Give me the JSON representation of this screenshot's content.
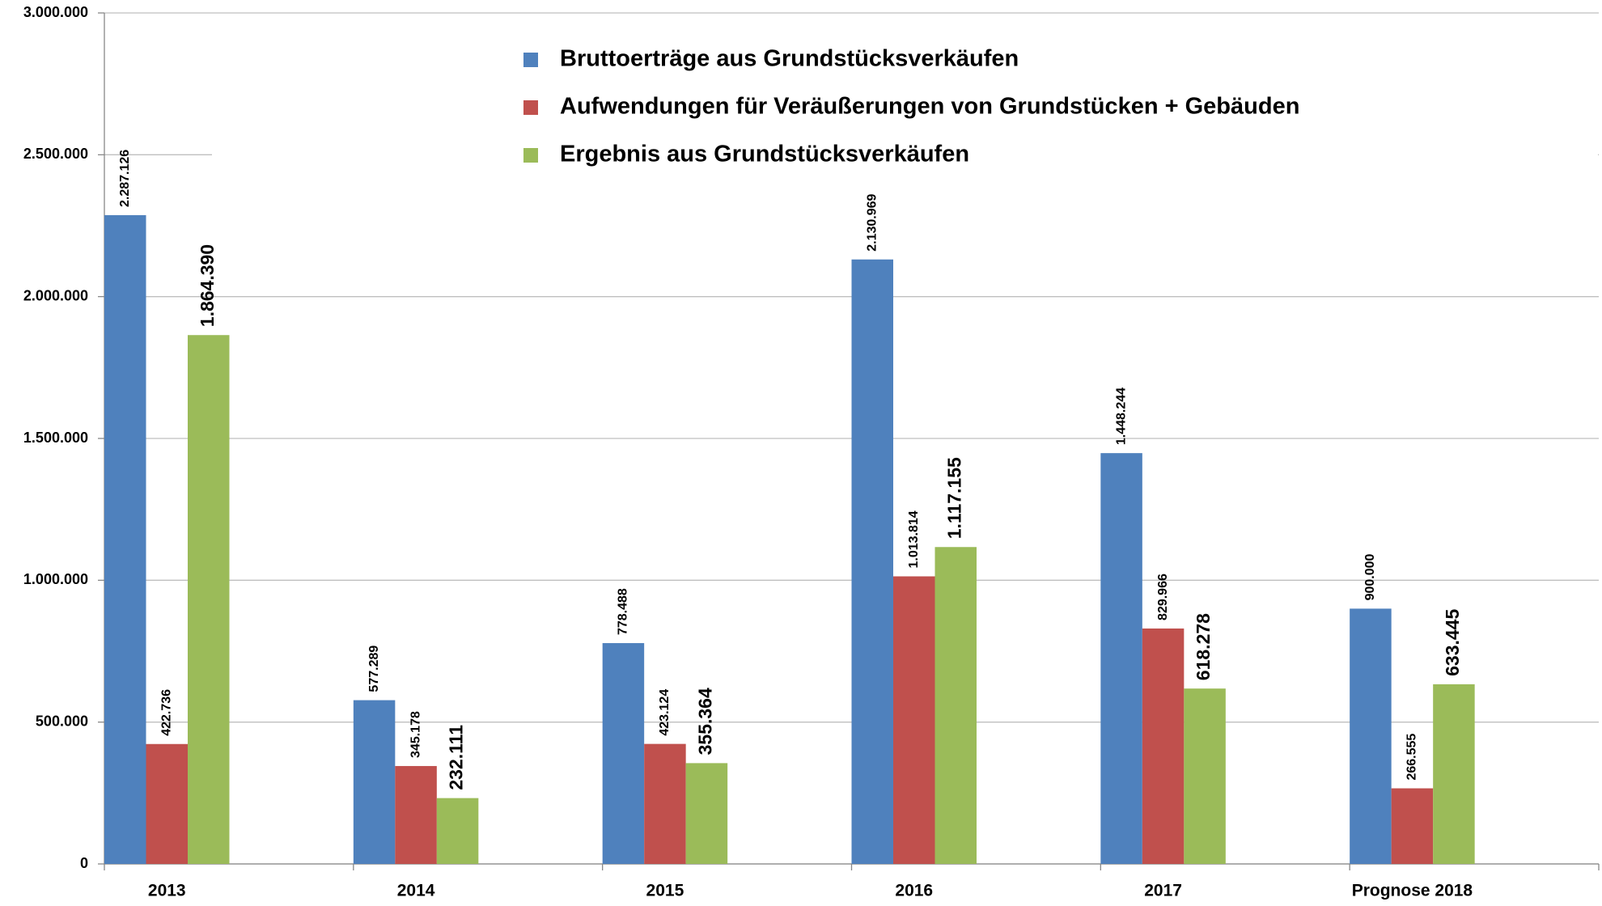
{
  "chart_data": {
    "type": "bar",
    "categories": [
      "2013",
      "2014",
      "2015",
      "2016",
      "2017",
      "Prognose 2018"
    ],
    "series": [
      {
        "name": "Bruttoerträge aus Grundstücksverkäufen",
        "color": "#4f81bd",
        "values": [
          2287126,
          577289,
          778488,
          2130969,
          1448244,
          900000
        ],
        "value_labels": [
          "2.287.126",
          "577.289",
          "778.488",
          "2.130.969",
          "1.448.244",
          "900.000"
        ]
      },
      {
        "name": "Aufwendungen für Veräußerungen von Grundstücken + Gebäuden",
        "color": "#c0504d",
        "values": [
          422736,
          345178,
          423124,
          1013814,
          829966,
          266555
        ],
        "value_labels": [
          "422.736",
          "345.178",
          "423.124",
          "1.013.814",
          "829.966",
          "266.555"
        ]
      },
      {
        "name": "Ergebnis aus Grundstücksverkäufen",
        "color": "#9bbb59",
        "values": [
          1864390,
          232111,
          355364,
          1117155,
          618278,
          633445
        ],
        "value_labels": [
          "1.864.390",
          "232.111",
          "355.364",
          "1.117.155",
          "618.278",
          "633.445"
        ]
      }
    ],
    "ylim": [
      0,
      3000000
    ],
    "yticks": [
      0,
      {
        "value": 500000,
        "label": "500.000"
      },
      {
        "value": 1000000,
        "label": "1.000.000"
      },
      {
        "value": 1500000,
        "label": "1.500.000"
      },
      {
        "value": 2000000,
        "label": "2.000.000"
      },
      {
        "value": 2500000,
        "label": "2.500.000"
      },
      {
        "value": 3000000,
        "label": "3.000.000"
      }
    ],
    "grid": true
  }
}
